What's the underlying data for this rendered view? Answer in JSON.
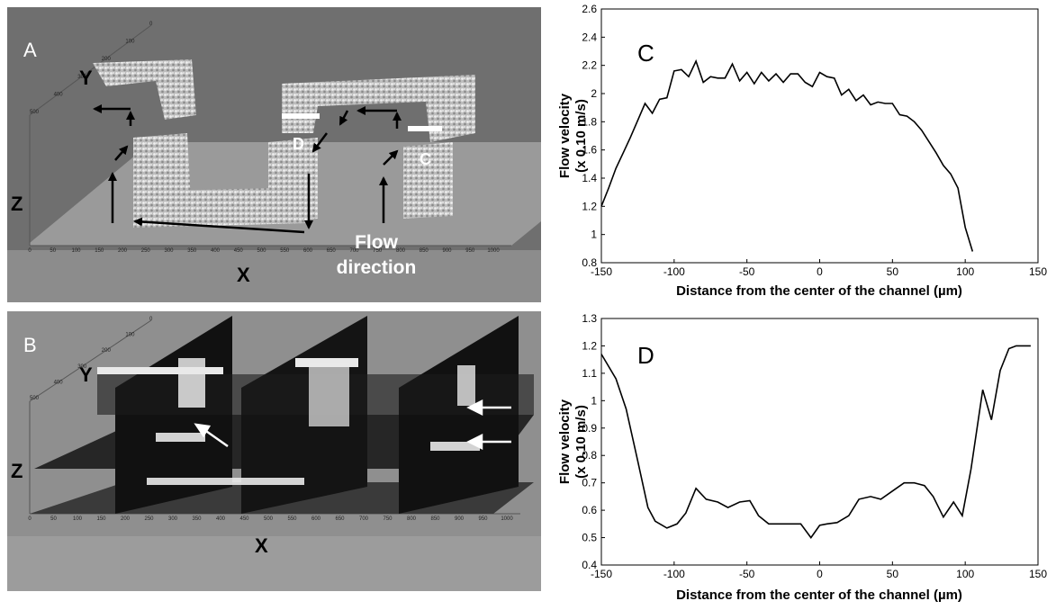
{
  "panel_a": {
    "letter": "A",
    "axis_y": "Y",
    "axis_z": "Z",
    "axis_x": "X",
    "marker_d": "D",
    "marker_c": "C",
    "flow_line1": "Flow",
    "flow_line2": "direction",
    "x_ticks": [
      "0",
      "50",
      "100",
      "150",
      "200",
      "250",
      "300",
      "350",
      "400",
      "450",
      "500",
      "550",
      "600",
      "650",
      "700",
      "750",
      "800",
      "850",
      "900",
      "950",
      "1000"
    ],
    "y_ticks": [
      "0",
      "100",
      "200",
      "300",
      "400",
      "500"
    ]
  },
  "panel_b": {
    "letter": "B",
    "axis_y": "Y",
    "axis_z": "Z",
    "axis_x": "X",
    "x_ticks": [
      "0",
      "50",
      "100",
      "150",
      "200",
      "250",
      "300",
      "350",
      "400",
      "450",
      "500",
      "550",
      "600",
      "650",
      "700",
      "750",
      "800",
      "850",
      "900",
      "950",
      "1000"
    ],
    "y_ticks": [
      "0",
      "100",
      "200",
      "300",
      "400",
      "500"
    ]
  },
  "chart_data": [
    {
      "panel": "C",
      "type": "line",
      "xlabel": "Distance from the center of the channel (µm)",
      "ylabel_line1": "Flow velocity",
      "ylabel_line2": "(x 0.10 m/s)",
      "xlim": [
        -150,
        150
      ],
      "ylim": [
        0.8,
        2.6
      ],
      "x_ticks": [
        -150,
        -100,
        -50,
        0,
        50,
        100,
        150
      ],
      "y_ticks": [
        0.8,
        1,
        1.2,
        1.4,
        1.6,
        1.8,
        2,
        2.2,
        2.4,
        2.6
      ],
      "x": [
        -150,
        -145,
        -140,
        -135,
        -130,
        -125,
        -120,
        -115,
        -110,
        -105,
        -100,
        -95,
        -90,
        -85,
        -80,
        -75,
        -70,
        -65,
        -60,
        -55,
        -50,
        -45,
        -40,
        -35,
        -30,
        -25,
        -20,
        -15,
        -10,
        -5,
        0,
        5,
        10,
        15,
        20,
        25,
        30,
        35,
        40,
        45,
        50,
        55,
        60,
        65,
        70,
        75,
        80,
        85,
        90,
        95,
        100,
        105,
        110,
        115,
        120,
        125,
        130,
        135,
        140,
        145
      ],
      "y": [
        1.2,
        1.33,
        1.47,
        1.58,
        1.69,
        1.81,
        1.93,
        1.86,
        1.96,
        1.97,
        2.16,
        2.17,
        2.12,
        2.23,
        2.08,
        2.12,
        2.11,
        2.11,
        2.21,
        2.09,
        2.15,
        2.07,
        2.15,
        2.09,
        2.14,
        2.08,
        2.14,
        2.14,
        2.08,
        2.05,
        2.15,
        2.12,
        2.11,
        1.99,
        2.03,
        1.95,
        1.99,
        1.92,
        1.94,
        1.93,
        1.93,
        1.85,
        1.84,
        1.8,
        1.74,
        1.66,
        1.58,
        1.49,
        1.43,
        1.33,
        1.05,
        0.88,
        null,
        null,
        null,
        null,
        null,
        null,
        null,
        null
      ]
    },
    {
      "panel": "D",
      "type": "line",
      "xlabel": "Distance from the center of the channel (µm)",
      "ylabel_line1": "Flow velocity",
      "ylabel_line2": "(x 0.10 m/s)",
      "xlim": [
        -150,
        150
      ],
      "ylim": [
        0.4,
        1.3
      ],
      "x_ticks": [
        -150,
        -100,
        -50,
        0,
        50,
        100,
        150
      ],
      "y_ticks": [
        0.4,
        0.5,
        0.6,
        0.7,
        0.8,
        0.9,
        1,
        1.1,
        1.2,
        1.3
      ],
      "x": [
        -150,
        -140,
        -133,
        -125,
        -118,
        -113,
        -105,
        -98,
        -92,
        -85,
        -78,
        -70,
        -63,
        -55,
        -48,
        -42,
        -35,
        -28,
        -20,
        -13,
        -6,
        0,
        5,
        12,
        20,
        27,
        35,
        42,
        50,
        58,
        65,
        72,
        78,
        85,
        92,
        98,
        104,
        112,
        118,
        124,
        130,
        135,
        140,
        145
      ],
      "y": [
        1.17,
        1.08,
        0.97,
        0.78,
        0.61,
        0.56,
        0.535,
        0.55,
        0.59,
        0.68,
        0.64,
        0.63,
        0.61,
        0.63,
        0.635,
        0.58,
        0.55,
        0.55,
        0.55,
        0.55,
        0.5,
        0.545,
        0.55,
        0.555,
        0.58,
        0.64,
        0.65,
        0.64,
        0.67,
        0.7,
        0.7,
        0.69,
        0.65,
        0.575,
        0.63,
        0.58,
        0.75,
        1.04,
        0.93,
        1.11,
        1.19,
        1.2,
        1.2,
        1.2
      ]
    }
  ]
}
